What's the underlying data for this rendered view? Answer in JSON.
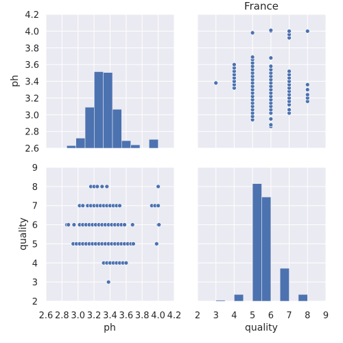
{
  "chart_data": {
    "type": "scatter",
    "subtype": "pairplot",
    "title": "France",
    "variables": [
      "ph",
      "quality"
    ],
    "axes": {
      "ph": {
        "label": "ph",
        "range": [
          2.6,
          4.2
        ],
        "ticks": [
          "2.6",
          "2.8",
          "3.0",
          "3.2",
          "3.4",
          "3.6",
          "3.8",
          "4.0",
          "4.2"
        ]
      },
      "quality": {
        "label": "quality",
        "range": [
          2,
          9
        ],
        "ticks": [
          "2",
          "3",
          "4",
          "5",
          "6",
          "7",
          "8",
          "9"
        ]
      }
    },
    "y_ticks": {
      "ph": [
        "2.6",
        "2.8",
        "3.0",
        "3.2",
        "3.4",
        "3.6",
        "3.8",
        "4.0",
        "4.2"
      ],
      "quality": [
        "2",
        "3",
        "4",
        "5",
        "6",
        "7",
        "8",
        "9"
      ]
    },
    "hist_ph": {
      "bin_edges": [
        2.86,
        2.974,
        3.088,
        3.202,
        3.316,
        3.43,
        3.544,
        3.658,
        3.772,
        3.886,
        4.0
      ],
      "heights": [
        2.631,
        2.72,
        3.09,
        3.515,
        3.505,
        3.065,
        2.69,
        2.64,
        2.6,
        2.705
      ]
    },
    "hist_quality": {
      "bin_edges": [
        3.0,
        3.5,
        4.0,
        4.5,
        5.0,
        5.5,
        6.0,
        6.5,
        7.0,
        7.5,
        8.0
      ],
      "heights": [
        2.05,
        0,
        2.35,
        0,
        8.15,
        7.45,
        0,
        3.72,
        0,
        2.35
      ]
    },
    "points": [
      {
        "ph": 3.38,
        "quality": 3
      },
      {
        "ph": 3.32,
        "quality": 4
      },
      {
        "ph": 3.36,
        "quality": 4
      },
      {
        "ph": 3.4,
        "quality": 4
      },
      {
        "ph": 3.44,
        "quality": 4
      },
      {
        "ph": 3.48,
        "quality": 4
      },
      {
        "ph": 3.52,
        "quality": 4
      },
      {
        "ph": 3.56,
        "quality": 4
      },
      {
        "ph": 3.6,
        "quality": 4
      },
      {
        "ph": 2.94,
        "quality": 5
      },
      {
        "ph": 2.98,
        "quality": 5
      },
      {
        "ph": 3.02,
        "quality": 5
      },
      {
        "ph": 3.06,
        "quality": 5
      },
      {
        "ph": 3.1,
        "quality": 5
      },
      {
        "ph": 3.14,
        "quality": 5
      },
      {
        "ph": 3.18,
        "quality": 5
      },
      {
        "ph": 3.22,
        "quality": 5
      },
      {
        "ph": 3.26,
        "quality": 5
      },
      {
        "ph": 3.3,
        "quality": 5
      },
      {
        "ph": 3.34,
        "quality": 5
      },
      {
        "ph": 3.38,
        "quality": 5
      },
      {
        "ph": 3.42,
        "quality": 5
      },
      {
        "ph": 3.46,
        "quality": 5
      },
      {
        "ph": 3.5,
        "quality": 5
      },
      {
        "ph": 3.54,
        "quality": 5
      },
      {
        "ph": 3.58,
        "quality": 5
      },
      {
        "ph": 3.62,
        "quality": 5
      },
      {
        "ph": 3.66,
        "quality": 5
      },
      {
        "ph": 3.69,
        "quality": 5
      },
      {
        "ph": 3.98,
        "quality": 5
      },
      {
        "ph": 2.86,
        "quality": 6
      },
      {
        "ph": 2.88,
        "quality": 6
      },
      {
        "ph": 2.95,
        "quality": 6
      },
      {
        "ph": 3.02,
        "quality": 6
      },
      {
        "ph": 3.06,
        "quality": 6
      },
      {
        "ph": 3.1,
        "quality": 6
      },
      {
        "ph": 3.14,
        "quality": 6
      },
      {
        "ph": 3.18,
        "quality": 6
      },
      {
        "ph": 3.22,
        "quality": 6
      },
      {
        "ph": 3.26,
        "quality": 6
      },
      {
        "ph": 3.3,
        "quality": 6
      },
      {
        "ph": 3.34,
        "quality": 6
      },
      {
        "ph": 3.38,
        "quality": 6
      },
      {
        "ph": 3.42,
        "quality": 6
      },
      {
        "ph": 3.46,
        "quality": 6
      },
      {
        "ph": 3.5,
        "quality": 6
      },
      {
        "ph": 3.54,
        "quality": 6
      },
      {
        "ph": 3.58,
        "quality": 6
      },
      {
        "ph": 3.68,
        "quality": 6
      },
      {
        "ph": 4.0,
        "quality": 6
      },
      {
        "ph": 4.01,
        "quality": 6
      },
      {
        "ph": 3.02,
        "quality": 7
      },
      {
        "ph": 3.06,
        "quality": 7
      },
      {
        "ph": 3.12,
        "quality": 7
      },
      {
        "ph": 3.16,
        "quality": 7
      },
      {
        "ph": 3.2,
        "quality": 7
      },
      {
        "ph": 3.24,
        "quality": 7
      },
      {
        "ph": 3.28,
        "quality": 7
      },
      {
        "ph": 3.32,
        "quality": 7
      },
      {
        "ph": 3.36,
        "quality": 7
      },
      {
        "ph": 3.4,
        "quality": 7
      },
      {
        "ph": 3.44,
        "quality": 7
      },
      {
        "ph": 3.48,
        "quality": 7
      },
      {
        "ph": 3.52,
        "quality": 7
      },
      {
        "ph": 3.92,
        "quality": 7
      },
      {
        "ph": 3.96,
        "quality": 7
      },
      {
        "ph": 4.0,
        "quality": 7
      },
      {
        "ph": 3.16,
        "quality": 8
      },
      {
        "ph": 3.2,
        "quality": 8
      },
      {
        "ph": 3.24,
        "quality": 8
      },
      {
        "ph": 3.3,
        "quality": 8
      },
      {
        "ph": 3.36,
        "quality": 8
      },
      {
        "ph": 4.0,
        "quality": 8
      }
    ]
  }
}
